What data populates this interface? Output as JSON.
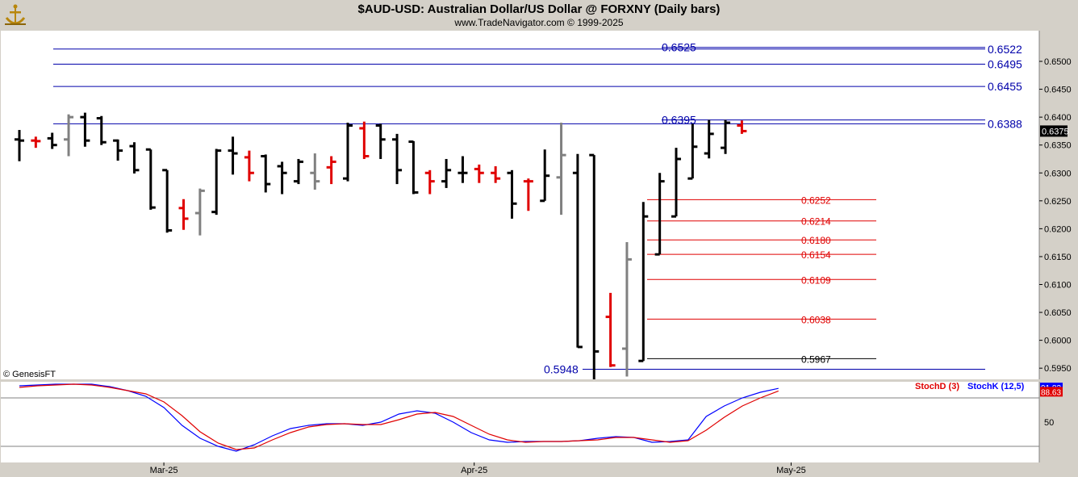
{
  "header": {
    "title": "$AUD-USD:  Australian Dollar/US Dollar @ FORXNY  (Daily bars)",
    "subtitle": "www.TradeNavigator.com © 1999-2025"
  },
  "watermark": "© GenesisFT",
  "colors": {
    "plot_bg": "#ffffff",
    "frame_bg": "#d4d0c8",
    "up_bar": "#000000",
    "neutral_bar": "#808080",
    "down_bar": "#e00000",
    "resistance_line": "#0000aa",
    "fib_line": "#e00000",
    "low_line": "#000000",
    "stoch_k": "#0000ff",
    "stoch_d": "#e00000",
    "last_price_box": "#000000"
  },
  "chart_data": [
    {
      "type": "ohlc",
      "title": "$AUD-USD:  Australian Dollar/US Dollar @ FORXNY  (Daily bars)",
      "y_axis": {
        "min": 0.593,
        "max": 0.6555,
        "ticks": [
          "0.6500",
          "0.6450",
          "0.6400",
          "0.6350",
          "0.6300",
          "0.6250",
          "0.6200",
          "0.6150",
          "0.6100",
          "0.6050",
          "0.6000",
          "0.5950"
        ]
      },
      "x_axis": {
        "labels": [
          {
            "text": "Mar-25",
            "bar": 8.8
          },
          {
            "text": "Apr-25",
            "bar": 27.7
          },
          {
            "text": "May-25",
            "bar": 47.0
          }
        ]
      },
      "last_price": "0.6375",
      "bars": [
        {
          "h": 0.6377,
          "l": 0.6321,
          "o": 0.636,
          "c": 0.6358,
          "color": "up"
        },
        {
          "h": 0.6365,
          "l": 0.6345,
          "o": 0.6358,
          "c": 0.6357,
          "color": "down"
        },
        {
          "h": 0.6372,
          "l": 0.6343,
          "o": 0.6362,
          "c": 0.635,
          "color": "up"
        },
        {
          "h": 0.6405,
          "l": 0.633,
          "o": 0.636,
          "c": 0.64,
          "color": "neutral"
        },
        {
          "h": 0.6408,
          "l": 0.6347,
          "o": 0.64,
          "c": 0.6358,
          "color": "up"
        },
        {
          "h": 0.6402,
          "l": 0.635,
          "o": 0.6398,
          "c": 0.6355,
          "color": "up"
        },
        {
          "h": 0.636,
          "l": 0.6322,
          "o": 0.6358,
          "c": 0.634,
          "color": "up"
        },
        {
          "h": 0.6355,
          "l": 0.6299,
          "o": 0.6348,
          "c": 0.6305,
          "color": "up"
        },
        {
          "h": 0.6342,
          "l": 0.6234,
          "o": 0.6342,
          "c": 0.6238,
          "color": "up"
        },
        {
          "h": 0.6305,
          "l": 0.6193,
          "o": 0.6305,
          "c": 0.6197,
          "color": "up"
        },
        {
          "h": 0.6253,
          "l": 0.6198,
          "o": 0.6237,
          "c": 0.6218,
          "color": "down"
        },
        {
          "h": 0.6272,
          "l": 0.6188,
          "o": 0.6228,
          "c": 0.6268,
          "color": "neutral"
        },
        {
          "h": 0.6343,
          "l": 0.6225,
          "o": 0.623,
          "c": 0.634,
          "color": "up"
        },
        {
          "h": 0.6365,
          "l": 0.6297,
          "o": 0.634,
          "c": 0.6335,
          "color": "up"
        },
        {
          "h": 0.634,
          "l": 0.6285,
          "o": 0.6328,
          "c": 0.63,
          "color": "down"
        },
        {
          "h": 0.6333,
          "l": 0.6265,
          "o": 0.633,
          "c": 0.628,
          "color": "up"
        },
        {
          "h": 0.632,
          "l": 0.6262,
          "o": 0.6312,
          "c": 0.63,
          "color": "up"
        },
        {
          "h": 0.6325,
          "l": 0.628,
          "o": 0.6285,
          "c": 0.632,
          "color": "up"
        },
        {
          "h": 0.6335,
          "l": 0.627,
          "o": 0.63,
          "c": 0.6285,
          "color": "neutral"
        },
        {
          "h": 0.633,
          "l": 0.628,
          "o": 0.631,
          "c": 0.632,
          "color": "down"
        },
        {
          "h": 0.639,
          "l": 0.6285,
          "o": 0.629,
          "c": 0.6385,
          "color": "up"
        },
        {
          "h": 0.6392,
          "l": 0.6325,
          "o": 0.638,
          "c": 0.633,
          "color": "down"
        },
        {
          "h": 0.6388,
          "l": 0.6325,
          "o": 0.6385,
          "c": 0.636,
          "color": "up"
        },
        {
          "h": 0.637,
          "l": 0.628,
          "o": 0.636,
          "c": 0.6305,
          "color": "up"
        },
        {
          "h": 0.6357,
          "l": 0.6262,
          "o": 0.6356,
          "c": 0.6265,
          "color": "up"
        },
        {
          "h": 0.6305,
          "l": 0.6262,
          "o": 0.63,
          "c": 0.6285,
          "color": "down"
        },
        {
          "h": 0.6325,
          "l": 0.6273,
          "o": 0.6285,
          "c": 0.6305,
          "color": "up"
        },
        {
          "h": 0.633,
          "l": 0.6282,
          "o": 0.63,
          "c": 0.63,
          "color": "up"
        },
        {
          "h": 0.6315,
          "l": 0.6282,
          "o": 0.6307,
          "c": 0.63,
          "color": "down"
        },
        {
          "h": 0.6312,
          "l": 0.6282,
          "o": 0.63,
          "c": 0.629,
          "color": "down"
        },
        {
          "h": 0.6305,
          "l": 0.6218,
          "o": 0.63,
          "c": 0.6245,
          "color": "up"
        },
        {
          "h": 0.629,
          "l": 0.6232,
          "o": 0.6285,
          "c": 0.6285,
          "color": "down"
        },
        {
          "h": 0.6342,
          "l": 0.625,
          "o": 0.625,
          "c": 0.6295,
          "color": "up"
        },
        {
          "h": 0.639,
          "l": 0.6225,
          "o": 0.6292,
          "c": 0.6332,
          "color": "neutral"
        },
        {
          "h": 0.6334,
          "l": 0.5987,
          "o": 0.63,
          "c": 0.5988,
          "color": "up"
        },
        {
          "h": 0.6332,
          "l": 0.593,
          "o": 0.6332,
          "c": 0.598,
          "color": "up"
        },
        {
          "h": 0.6085,
          "l": 0.5952,
          "o": 0.6042,
          "c": 0.5955,
          "color": "down"
        },
        {
          "h": 0.6176,
          "l": 0.5935,
          "o": 0.5985,
          "c": 0.6145,
          "color": "neutral"
        },
        {
          "h": 0.6248,
          "l": 0.5963,
          "o": 0.5963,
          "c": 0.6222,
          "color": "up"
        },
        {
          "h": 0.63,
          "l": 0.6154,
          "o": 0.6154,
          "c": 0.6285,
          "color": "up"
        },
        {
          "h": 0.6345,
          "l": 0.6222,
          "o": 0.6222,
          "c": 0.6325,
          "color": "up"
        },
        {
          "h": 0.6388,
          "l": 0.629,
          "o": 0.629,
          "c": 0.6347,
          "color": "up"
        },
        {
          "h": 0.6395,
          "l": 0.6326,
          "o": 0.6335,
          "c": 0.637,
          "color": "up"
        },
        {
          "h": 0.6395,
          "l": 0.6334,
          "o": 0.6345,
          "c": 0.639,
          "color": "up"
        },
        {
          "h": 0.6394,
          "l": 0.637,
          "o": 0.6385,
          "c": 0.6375,
          "color": "down"
        }
      ],
      "resistance_levels": [
        {
          "value": 0.6522,
          "label": "0.6522"
        },
        {
          "value": 0.6495,
          "label": "0.6495"
        },
        {
          "value": 0.6455,
          "label": "0.6455"
        },
        {
          "value": 0.6388,
          "label": "0.6388"
        }
      ],
      "mid_labels": [
        {
          "value": 0.6525,
          "label": "0.6525"
        },
        {
          "value": 0.6395,
          "label": "0.6395"
        },
        {
          "value": 0.5948,
          "label": "0.5948"
        }
      ],
      "fib_levels": [
        {
          "value": 0.6252,
          "label": "0.6252"
        },
        {
          "value": 0.6214,
          "label": "0.6214"
        },
        {
          "value": 0.618,
          "label": "0.6180"
        },
        {
          "value": 0.6154,
          "label": "0.6154"
        },
        {
          "value": 0.6109,
          "label": "0.6109"
        },
        {
          "value": 0.6038,
          "label": "0.6038"
        }
      ],
      "low_level": {
        "value": 0.5967,
        "label": "0.5967"
      }
    },
    {
      "type": "line",
      "title": "",
      "legend": [
        {
          "text": "StochD (3)",
          "color": "#e00000"
        },
        {
          "text": "StochK (12,5)",
          "color": "#0000ff"
        }
      ],
      "y_axis": {
        "min": 0,
        "max": 100,
        "ticks": [
          "50"
        ],
        "reference_lines": [
          80,
          20
        ]
      },
      "last_k": "91.83",
      "last_d": "88.63",
      "series": [
        {
          "name": "StochK (12,5)",
          "values": [
            95,
            96,
            97,
            97,
            97,
            94,
            89,
            82,
            68,
            46,
            30,
            20,
            14,
            22,
            33,
            42,
            46,
            48,
            48,
            46,
            50,
            60,
            64,
            61,
            50,
            37,
            28,
            25,
            26,
            26,
            26,
            27,
            30,
            32,
            31,
            25,
            26,
            28,
            57,
            70,
            80,
            87,
            91.83
          ]
        },
        {
          "name": "StochD (3)",
          "values": [
            93,
            95,
            96,
            97,
            96,
            93,
            89,
            85,
            75,
            58,
            38,
            24,
            16,
            18,
            28,
            37,
            44,
            47,
            48,
            47,
            47,
            53,
            60,
            62,
            57,
            46,
            35,
            28,
            25,
            26,
            26,
            27,
            28,
            31,
            31,
            28,
            25,
            27,
            40,
            56,
            70,
            80,
            88.63
          ]
        }
      ]
    }
  ]
}
